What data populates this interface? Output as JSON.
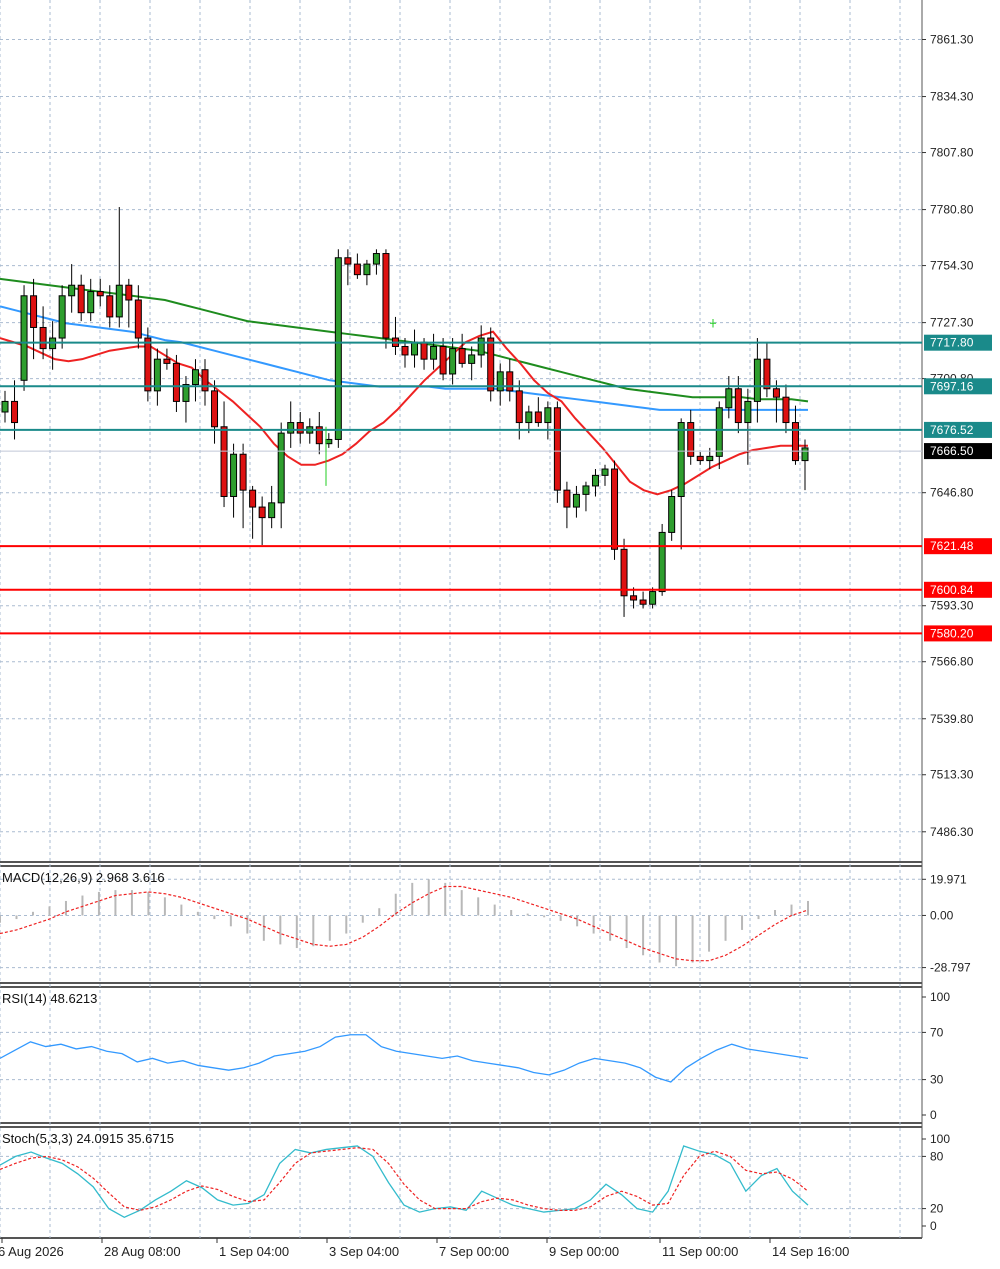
{
  "chart_data": {
    "type": "candlestick",
    "main": {
      "price_ticks": [
        "7861.30",
        "7834.30",
        "7807.80",
        "7780.80",
        "7754.30",
        "7727.30",
        "7700.80",
        "7566.80",
        "7539.80",
        "7513.30",
        "7486.30",
        "7646.80",
        "7593.30"
      ],
      "ylim": [
        7472,
        7880
      ],
      "levels": [
        {
          "label": "7717.80",
          "value": 7717.8,
          "color": "#1a8a8a"
        },
        {
          "label": "7697.16",
          "value": 7697.16,
          "color": "#1a8a8a"
        },
        {
          "label": "7676.52",
          "value": 7676.52,
          "color": "#1a8a8a"
        },
        {
          "label": "7621.48",
          "value": 7621.48,
          "color": "#ff0000"
        },
        {
          "label": "7600.84",
          "value": 7600.84,
          "color": "#ff0000"
        },
        {
          "label": "7580.20",
          "value": 7580.2,
          "color": "#ff0000"
        }
      ],
      "current_price": {
        "label": "7666.50",
        "value": 7666.5
      },
      "candles": [
        [
          7685,
          7695,
          7680,
          7690
        ],
        [
          7690,
          7700,
          7672,
          7680
        ],
        [
          7700,
          7745,
          7695,
          7740
        ],
        [
          7740,
          7748,
          7710,
          7725
        ],
        [
          7725,
          7735,
          7710,
          7715
        ],
        [
          7715,
          7728,
          7705,
          7720
        ],
        [
          7720,
          7745,
          7715,
          7740
        ],
        [
          7740,
          7755,
          7732,
          7745
        ],
        [
          7745,
          7750,
          7728,
          7732
        ],
        [
          7732,
          7748,
          7728,
          7742
        ],
        [
          7742,
          7748,
          7735,
          7740
        ],
        [
          7740,
          7745,
          7725,
          7730
        ],
        [
          7730,
          7782,
          7725,
          7745
        ],
        [
          7745,
          7748,
          7725,
          7738
        ],
        [
          7738,
          7745,
          7715,
          7720
        ],
        [
          7720,
          7725,
          7690,
          7695
        ],
        [
          7695,
          7715,
          7688,
          7710
        ],
        [
          7710,
          7715,
          7705,
          7708
        ],
        [
          7708,
          7712,
          7685,
          7690
        ],
        [
          7690,
          7702,
          7680,
          7698
        ],
        [
          7698,
          7710,
          7690,
          7705
        ],
        [
          7705,
          7710,
          7688,
          7695
        ],
        [
          7695,
          7700,
          7670,
          7678
        ],
        [
          7678,
          7690,
          7640,
          7645
        ],
        [
          7645,
          7670,
          7635,
          7665
        ],
        [
          7665,
          7670,
          7630,
          7648
        ],
        [
          7648,
          7650,
          7625,
          7640
        ],
        [
          7640,
          7645,
          7622,
          7635
        ],
        [
          7635,
          7650,
          7630,
          7642
        ],
        [
          7642,
          7680,
          7630,
          7675
        ],
        [
          7675,
          7690,
          7668,
          7680
        ],
        [
          7680,
          7685,
          7670,
          7675
        ],
        [
          7675,
          7682,
          7670,
          7678
        ],
        [
          7678,
          7685,
          7665,
          7670
        ],
        [
          7670,
          7675,
          7668,
          7672
        ],
        [
          7672,
          7762,
          7668,
          7758
        ],
        [
          7758,
          7762,
          7745,
          7755
        ],
        [
          7755,
          7760,
          7748,
          7750
        ],
        [
          7750,
          7757,
          7745,
          7755
        ],
        [
          7755,
          7762,
          7750,
          7760
        ],
        [
          7760,
          7762,
          7715,
          7720
        ],
        [
          7720,
          7730,
          7712,
          7716
        ],
        [
          7716,
          7720,
          7706,
          7712
        ],
        [
          7712,
          7724,
          7706,
          7718
        ],
        [
          7718,
          7720,
          7705,
          7710
        ],
        [
          7710,
          7722,
          7705,
          7716
        ],
        [
          7716,
          7720,
          7700,
          7703
        ],
        [
          7703,
          7720,
          7698,
          7715
        ],
        [
          7715,
          7722,
          7706,
          7708
        ],
        [
          7708,
          7716,
          7700,
          7712
        ],
        [
          7712,
          7726,
          7706,
          7720
        ],
        [
          7720,
          7725,
          7690,
          7695
        ],
        [
          7695,
          7708,
          7688,
          7704
        ],
        [
          7704,
          7710,
          7690,
          7695
        ],
        [
          7695,
          7700,
          7672,
          7680
        ],
        [
          7680,
          7688,
          7675,
          7685
        ],
        [
          7685,
          7692,
          7678,
          7680
        ],
        [
          7680,
          7690,
          7672,
          7687
        ],
        [
          7687,
          7690,
          7642,
          7648
        ],
        [
          7648,
          7652,
          7630,
          7640
        ],
        [
          7640,
          7650,
          7635,
          7646
        ],
        [
          7646,
          7652,
          7638,
          7650
        ],
        [
          7650,
          7658,
          7645,
          7655
        ],
        [
          7655,
          7660,
          7650,
          7658
        ],
        [
          7658,
          7662,
          7615,
          7620
        ],
        [
          7620,
          7625,
          7588,
          7598
        ],
        [
          7598,
          7602,
          7592,
          7596
        ],
        [
          7596,
          7600,
          7592,
          7594
        ],
        [
          7594,
          7602,
          7592,
          7600
        ],
        [
          7600,
          7632,
          7598,
          7628
        ],
        [
          7628,
          7648,
          7624,
          7645
        ],
        [
          7645,
          7682,
          7620,
          7680
        ],
        [
          7680,
          7686,
          7660,
          7664
        ],
        [
          7664,
          7666,
          7660,
          7662
        ],
        [
          7662,
          7668,
          7658,
          7664
        ],
        [
          7664,
          7690,
          7658,
          7687
        ],
        [
          7687,
          7702,
          7682,
          7696
        ],
        [
          7696,
          7702,
          7675,
          7680
        ],
        [
          7680,
          7696,
          7660,
          7690
        ],
        [
          7690,
          7720,
          7680,
          7710
        ],
        [
          7710,
          7718,
          7692,
          7696
        ],
        [
          7696,
          7700,
          7680,
          7692
        ],
        [
          7692,
          7698,
          7675,
          7680
        ],
        [
          7680,
          7688,
          7660,
          7662
        ],
        [
          7662,
          7672,
          7648,
          7668
        ]
      ],
      "ma_fast": [
        7720,
        7718,
        7716,
        7713,
        7710,
        7709,
        7710,
        7712,
        7714,
        7715,
        7716,
        7716,
        7712,
        7708,
        7706,
        7700,
        7695,
        7690,
        7684,
        7678,
        7670,
        7664,
        7660,
        7660,
        7662,
        7665,
        7670,
        7676,
        7680,
        7686,
        7693,
        7700,
        7706,
        7712,
        7718,
        7721,
        7723,
        7715,
        7708,
        7700,
        7694,
        7690,
        7682,
        7675,
        7668,
        7660,
        7652,
        7648,
        7646,
        7648,
        7651,
        7655,
        7659,
        7662,
        7665,
        7667,
        7668,
        7669,
        7669,
        7669
      ],
      "ma_mid": [
        7735,
        7733,
        7731,
        7729,
        7727,
        7726,
        7725,
        7724,
        7723,
        7721,
        7719,
        7718,
        7716,
        7714,
        7712,
        7710,
        7708,
        7706,
        7704,
        7702,
        7700,
        7699,
        7698,
        7697,
        7697,
        7697,
        7697,
        7696,
        7696,
        7696,
        7696,
        7695,
        7694,
        7693,
        7692,
        7691,
        7690,
        7689,
        7688,
        7687,
        7686,
        7686,
        7686,
        7686,
        7686,
        7686,
        7686,
        7686,
        7686,
        7686
      ],
      "ma_slow": [
        7748,
        7747,
        7746,
        7745,
        7744,
        7743,
        7742,
        7741,
        7740,
        7739,
        7738,
        7736,
        7734,
        7732,
        7730,
        7728,
        7727,
        7726,
        7725,
        7724,
        7723,
        7722,
        7721,
        7720,
        7719,
        7718,
        7717,
        7716,
        7715,
        7714,
        7712,
        7710,
        7708,
        7706,
        7704,
        7702,
        7700,
        7698,
        7696,
        7695,
        7694,
        7693,
        7692,
        7692,
        7692,
        7692,
        7691,
        7691,
        7691,
        7690
      ],
      "annotations": [
        "cross at 3 Sep 04:00 region",
        "cross near 11 Sep 00:00"
      ]
    },
    "x_labels": [
      "6 Aug 2026",
      "28 Aug 08:00",
      "1 Sep 04:00",
      "3 Sep 04:00",
      "7 Sep 00:00",
      "9 Sep 00:00",
      "11 Sep 00:00",
      "14 Sep 16:00"
    ],
    "macd": {
      "label": "MACD(12,26,9) 2.968 3.616",
      "ticks": [
        "19.971",
        "0.00",
        "-28.797"
      ],
      "ylim": [
        -34,
        24
      ],
      "histogram": [
        -4,
        -2,
        2,
        5,
        8,
        11,
        13,
        14,
        14,
        13,
        10,
        6,
        2,
        -2,
        -6,
        -10,
        -14,
        -16,
        -18,
        -17,
        -14,
        -10,
        -4,
        4,
        12,
        18,
        20,
        18,
        14,
        10,
        6,
        3,
        1,
        -1,
        -3,
        -6,
        -10,
        -14,
        -18,
        -22,
        -26,
        -28,
        -26,
        -20,
        -14,
        -8,
        -2,
        3,
        6,
        8
      ],
      "signal": [
        -10,
        -8,
        -5,
        -2,
        2,
        5,
        8,
        11,
        12,
        13,
        12,
        10,
        7,
        4,
        1,
        -2,
        -6,
        -10,
        -13,
        -16,
        -17,
        -16,
        -12,
        -6,
        1,
        7,
        12,
        16,
        16,
        14,
        12,
        10,
        7,
        4,
        1,
        -2,
        -6,
        -10,
        -14,
        -18,
        -21,
        -24,
        -25,
        -25,
        -22,
        -17,
        -11,
        -5,
        0,
        3
      ]
    },
    "rsi": {
      "label": "RSI(14) 48.6213",
      "ticks": [
        "100",
        "70",
        "30",
        "0"
      ],
      "ylim": [
        0,
        100
      ],
      "values": [
        48,
        55,
        62,
        58,
        60,
        56,
        58,
        54,
        52,
        45,
        48,
        44,
        46,
        42,
        40,
        38,
        40,
        44,
        50,
        52,
        54,
        58,
        66,
        68,
        68,
        58,
        54,
        52,
        50,
        48,
        50,
        46,
        44,
        42,
        40,
        36,
        34,
        38,
        44,
        48,
        46,
        44,
        40,
        32,
        28,
        40,
        48,
        55,
        60,
        56,
        54,
        52,
        50,
        48
      ]
    },
    "stoch": {
      "label": "Stoch(5,3,3) 24.0915 35.6715",
      "ticks": [
        "100",
        "80",
        "20",
        "0"
      ],
      "ylim": [
        0,
        100
      ],
      "k": [
        70,
        80,
        85,
        78,
        72,
        60,
        45,
        20,
        10,
        18,
        30,
        40,
        52,
        44,
        30,
        24,
        26,
        36,
        72,
        88,
        84,
        88,
        90,
        92,
        80,
        50,
        24,
        16,
        20,
        22,
        18,
        40,
        32,
        24,
        20,
        16,
        18,
        20,
        30,
        48,
        36,
        20,
        16,
        40,
        92,
        86,
        82,
        72,
        40,
        58,
        66,
        40,
        24
      ],
      "d": [
        65,
        72,
        78,
        80,
        76,
        68,
        55,
        38,
        22,
        18,
        22,
        30,
        40,
        46,
        42,
        34,
        28,
        30,
        50,
        72,
        84,
        86,
        88,
        90,
        88,
        72,
        48,
        30,
        20,
        20,
        20,
        28,
        32,
        30,
        24,
        20,
        18,
        18,
        22,
        34,
        40,
        34,
        24,
        26,
        58,
        80,
        86,
        80,
        64,
        60,
        62,
        54,
        40
      ]
    }
  }
}
